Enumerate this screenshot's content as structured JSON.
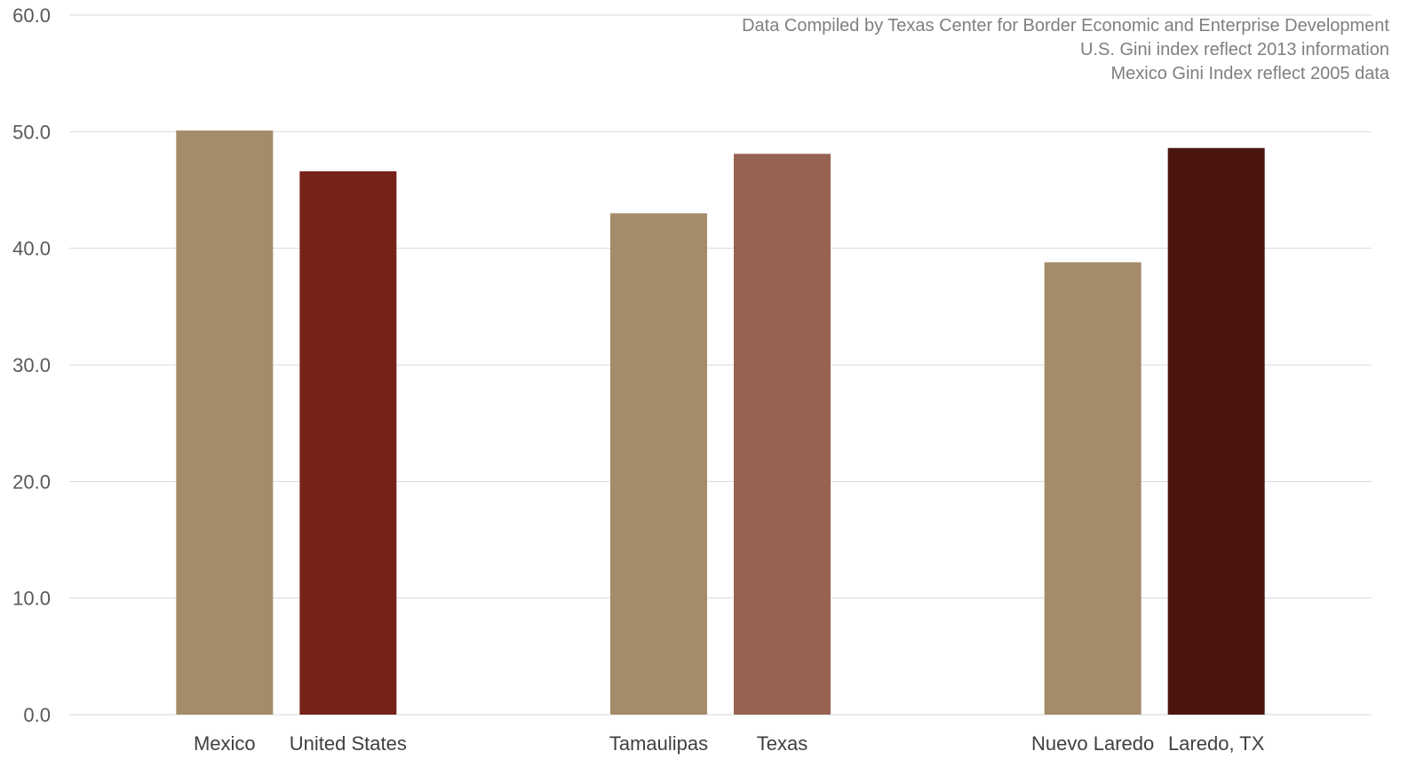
{
  "chart_data": {
    "type": "bar",
    "categories": [
      "Mexico",
      "United States",
      "Tamaulipas",
      "Texas",
      "Nuevo Laredo",
      "Laredo, TX"
    ],
    "values": [
      50.1,
      46.6,
      43.0,
      48.1,
      38.8,
      48.6
    ],
    "colors": [
      "#a48c6a",
      "#762218",
      "#a48c6a",
      "#966352",
      "#a48c6a",
      "#4b1610"
    ],
    "groups": [
      [
        0,
        1
      ],
      [
        2,
        3
      ],
      [
        4,
        5
      ]
    ],
    "ylim": [
      0,
      60
    ],
    "yticks": [
      "0.0",
      "10.0",
      "20.0",
      "30.0",
      "40.0",
      "50.0",
      "60.0"
    ],
    "grid": true,
    "legend": "none",
    "title": "",
    "xlabel": "",
    "ylabel": "",
    "notes": [
      "Data Compiled by Texas Center for Border Economic and Enterprise Development",
      "U.S. Gini index reflect 2013 information",
      "Mexico Gini Index reflect 2005 data"
    ]
  }
}
